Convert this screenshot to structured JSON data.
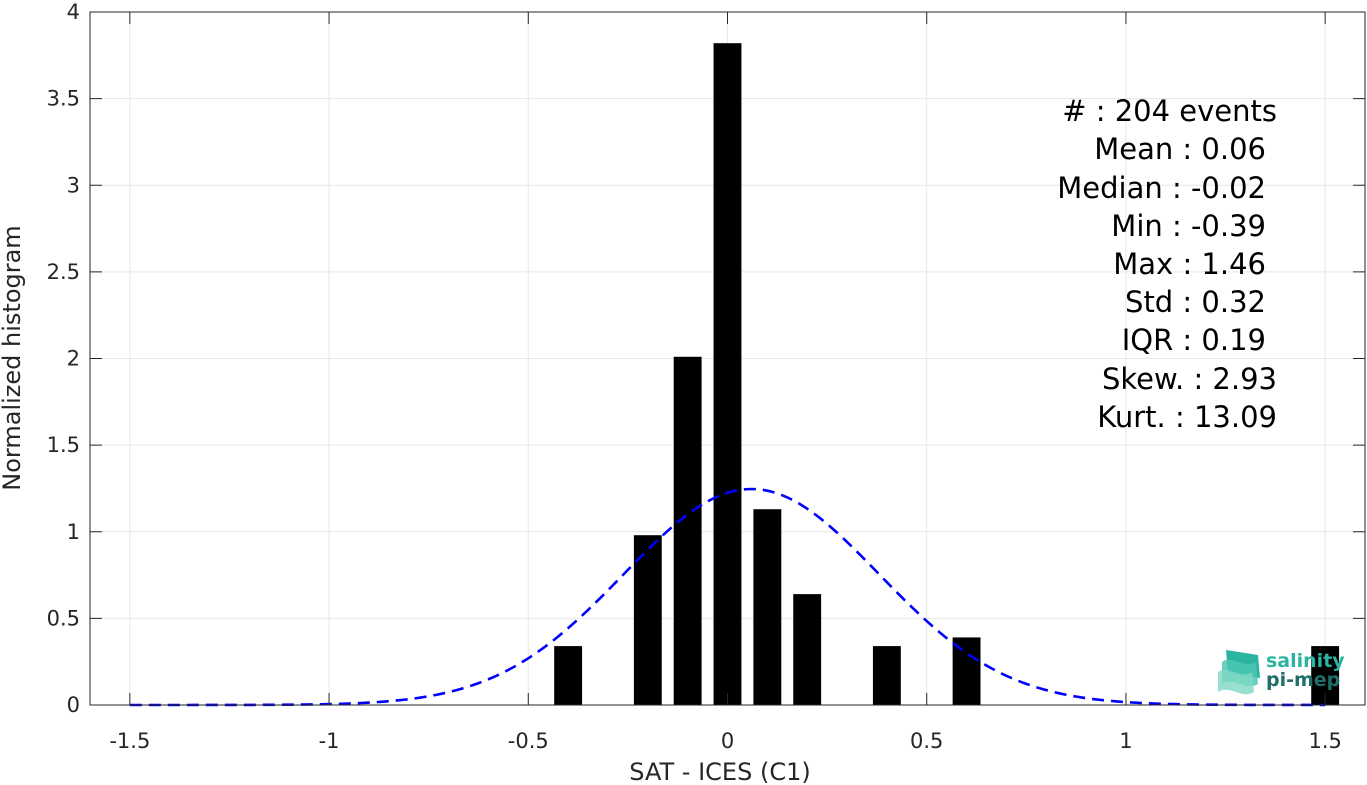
{
  "chart_data": {
    "type": "bar",
    "xlabel": "SAT - ICES (C1)",
    "ylabel": "Normalized histogram",
    "xlim": [
      -1.6,
      1.6
    ],
    "ylim": [
      0,
      4
    ],
    "xticks": [
      -1.5,
      -1,
      -0.5,
      0,
      0.5,
      1,
      1.5
    ],
    "xtick_labels": [
      "-1.5",
      "-1",
      "-0.5",
      "0",
      "0.5",
      "1",
      "1.5"
    ],
    "yticks": [
      0,
      0.5,
      1,
      1.5,
      2,
      2.5,
      3,
      3.5,
      4
    ],
    "ytick_labels": [
      "0",
      "0.5",
      "1",
      "1.5",
      "2",
      "2.5",
      "3",
      "3.5",
      "4"
    ],
    "grid": true,
    "bar_width": 0.07,
    "bars": [
      {
        "x": -0.4,
        "y": 0.34
      },
      {
        "x": -0.2,
        "y": 0.98
      },
      {
        "x": -0.1,
        "y": 2.01
      },
      {
        "x": 0.0,
        "y": 3.82
      },
      {
        "x": 0.1,
        "y": 1.13
      },
      {
        "x": 0.2,
        "y": 0.64
      },
      {
        "x": 0.4,
        "y": 0.34
      },
      {
        "x": 0.6,
        "y": 0.39
      },
      {
        "x": 1.5,
        "y": 0.34
      }
    ],
    "bar_color": "#000000",
    "fit_curve": {
      "style": "dashed",
      "color": "#0000ff",
      "mean": 0.06,
      "std": 0.32,
      "x_range": [
        -1.5,
        1.5
      ]
    }
  },
  "stats": {
    "events": "#  : 204 events",
    "mean": "Mean : 0.06",
    "median": "Median : -0.02",
    "min": "Min : -0.39",
    "max": "Max : 1.46",
    "std": "Std : 0.32",
    "iqr": "IQR : 0.19",
    "skew": "Skew. : 2.93",
    "kurt": "Kurt. : 13.09"
  },
  "logo": {
    "line1": "salinity",
    "line2": "pi-mep",
    "color1": "#2bb5a0",
    "color2": "#1f6e6a"
  }
}
